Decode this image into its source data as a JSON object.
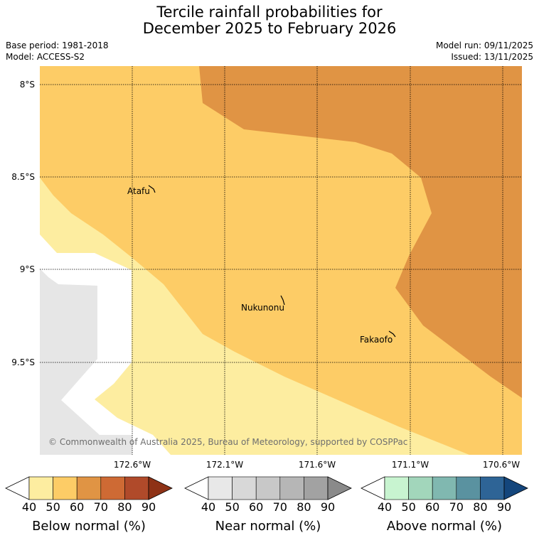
{
  "title": {
    "line1": "Tercile rainfall probabilities for",
    "line2": "December 2025 to February 2026"
  },
  "meta": {
    "base_period": "Base period: 1981-2018",
    "model": "Model: ACCESS-S2",
    "model_run": "Model run: 09/11/2025",
    "issued": "Issued: 13/11/2025"
  },
  "map": {
    "lat_labels": [
      "8°S",
      "8.5°S",
      "9°S",
      "9.5°S"
    ],
    "lon_labels": [
      "172.6°W",
      "172.1°W",
      "171.6°W",
      "171.1°W",
      "170.6°W"
    ],
    "places": [
      "Atafu",
      "Nukunonu",
      "Fakaofo"
    ],
    "copyright": "© Commonwealth of Australia 2025, Bureau of Meteorology, supported by COSPPac",
    "colors": {
      "below_40_50": "#fdeda0",
      "below_50_60": "#fdcc66",
      "below_60_70": "#e09444",
      "no_data": "#e6e6e6",
      "grid": "#000000"
    }
  },
  "colorbars": [
    {
      "title": "Below normal (%)",
      "ticks": [
        "40",
        "50",
        "60",
        "70",
        "80",
        "90"
      ],
      "colors": [
        "#ffffff",
        "#fdeda0",
        "#fdcc66",
        "#e09444",
        "#ce6a34",
        "#b04a2a",
        "#8e3216"
      ]
    },
    {
      "title": "Near normal (%)",
      "ticks": [
        "40",
        "50",
        "60",
        "70",
        "80",
        "90"
      ],
      "colors": [
        "#ffffff",
        "#e8e8e8",
        "#d8d8d8",
        "#c8c8c8",
        "#b6b6b6",
        "#a2a2a2",
        "#8a8a8a"
      ]
    },
    {
      "title": "Above normal (%)",
      "ticks": [
        "40",
        "50",
        "60",
        "70",
        "80",
        "90"
      ],
      "colors": [
        "#ffffff",
        "#c8f4d0",
        "#a2d6bb",
        "#80b8b0",
        "#5a92a0",
        "#2e6496",
        "#14467c"
      ]
    }
  ]
}
